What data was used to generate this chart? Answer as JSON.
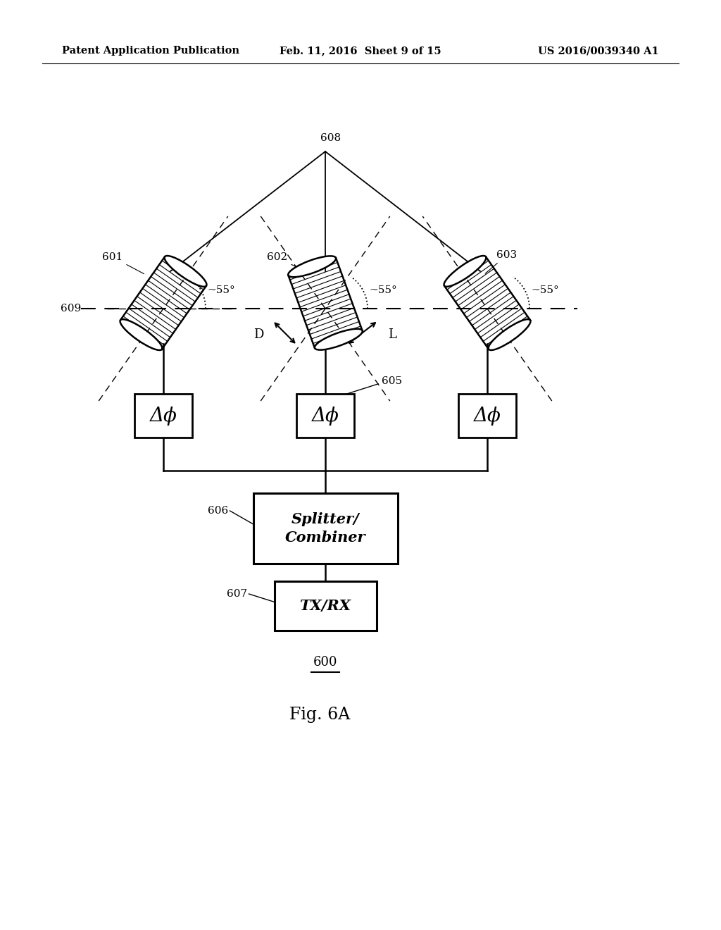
{
  "header_left": "Patent Application Publication",
  "header_mid": "Feb. 11, 2016  Sheet 9 of 15",
  "header_right": "US 2016/0039340 A1",
  "fig_label": "Fig. 6A",
  "diagram_label": "600",
  "background": "#ffffff",
  "label_601": "601",
  "label_602": "602",
  "label_603": "603",
  "label_605": "605",
  "label_606": "606",
  "label_607": "607",
  "label_608": "608",
  "label_609": "609",
  "label_D": "D",
  "label_L": "L",
  "angle_label": "~55°",
  "box_delta_phi": "Δϕ",
  "box_splitter": "Splitter/\nCombiner",
  "box_txrx": "TX/RX"
}
